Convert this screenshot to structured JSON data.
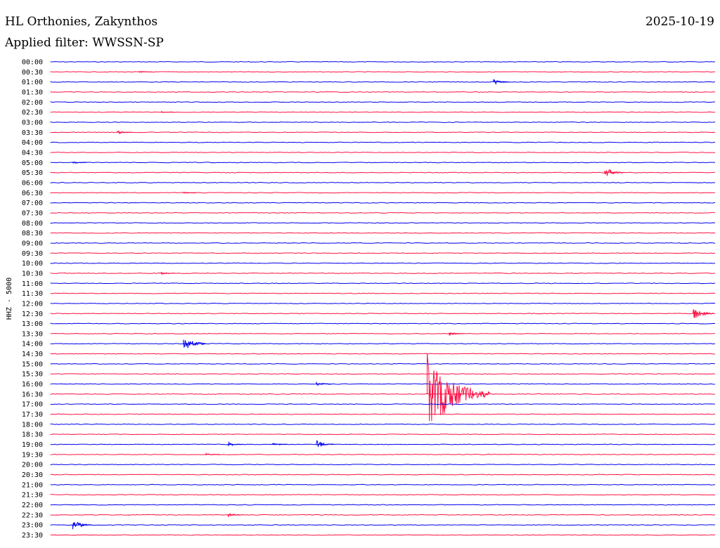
{
  "header": {
    "station": "HL Orthonies, Zakynthos",
    "date": "2025-10-19",
    "filter": "Applied filter: WWSSN-SP"
  },
  "colors": {
    "even_row": "#0000ee",
    "odd_row": "#ff1144"
  },
  "chart_data": {
    "type": "line",
    "title": "HL Orthonies, Zakynthos",
    "subtitle": "Applied filter: WWSSN-SP",
    "ylabel": "HHZ - 5000",
    "xlabel": "",
    "row_labels": [
      "00:00",
      "00:30",
      "01:00",
      "01:30",
      "02:00",
      "02:30",
      "03:00",
      "03:30",
      "04:00",
      "04:30",
      "05:00",
      "05:30",
      "06:00",
      "06:30",
      "07:00",
      "07:30",
      "08:00",
      "08:30",
      "09:00",
      "09:30",
      "10:00",
      "10:30",
      "11:00",
      "11:30",
      "12:00",
      "12:30",
      "13:00",
      "13:30",
      "14:00",
      "14:30",
      "15:00",
      "15:30",
      "16:00",
      "16:30",
      "17:00",
      "17:30",
      "18:00",
      "18:30",
      "19:00",
      "19:30",
      "20:00",
      "20:30",
      "21:00",
      "21:30",
      "22:00",
      "22:30",
      "23:00",
      "23:30"
    ],
    "row_minutes": 30,
    "events": [
      {
        "row": "00:30",
        "minute": 4,
        "amplitude": 1
      },
      {
        "row": "01:00",
        "minute": 20,
        "amplitude": 4
      },
      {
        "row": "02:30",
        "minute": 5,
        "amplitude": 1
      },
      {
        "row": "03:30",
        "minute": 3,
        "amplitude": 3
      },
      {
        "row": "05:00",
        "minute": 1,
        "amplitude": 2
      },
      {
        "row": "05:30",
        "minute": 25,
        "amplitude": 9
      },
      {
        "row": "06:30",
        "minute": 6,
        "amplitude": 1
      },
      {
        "row": "10:30",
        "minute": 5,
        "amplitude": 2
      },
      {
        "row": "12:30",
        "minute": 29,
        "amplitude": 10
      },
      {
        "row": "13:30",
        "minute": 18,
        "amplitude": 3
      },
      {
        "row": "14:00",
        "minute": 6,
        "amplitude": 12
      },
      {
        "row": "16:00",
        "minute": 12,
        "amplitude": 3
      },
      {
        "row": "16:30",
        "minute": 17,
        "amplitude": 60
      },
      {
        "row": "19:00",
        "minute": 8,
        "amplitude": 4
      },
      {
        "row": "19:00",
        "minute": 10,
        "amplitude": 3
      },
      {
        "row": "19:00",
        "minute": 12,
        "amplitude": 6
      },
      {
        "row": "19:30",
        "minute": 7,
        "amplitude": 2
      },
      {
        "row": "22:30",
        "minute": 8,
        "amplitude": 3
      },
      {
        "row": "23:00",
        "minute": 1,
        "amplitude": 8
      }
    ]
  }
}
